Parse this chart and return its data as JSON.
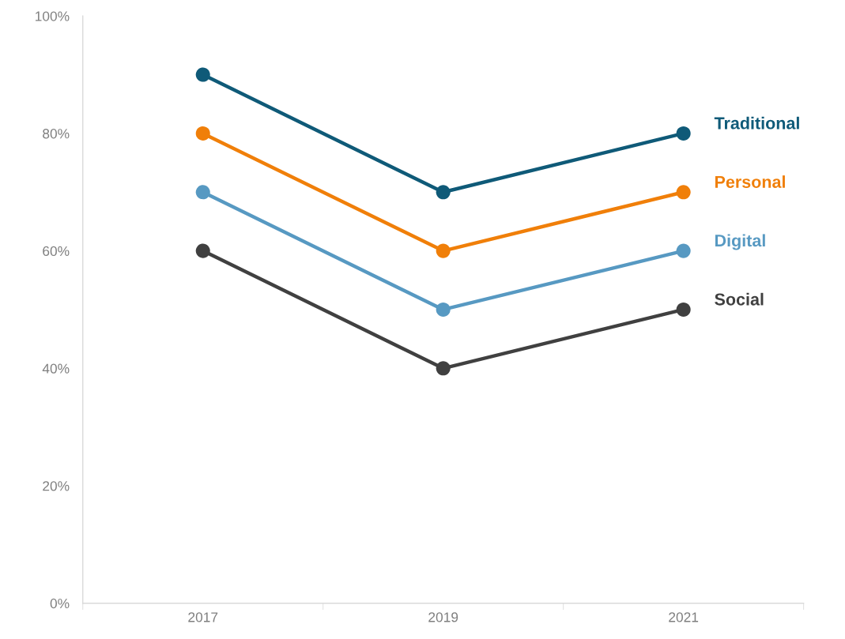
{
  "chart_data": {
    "type": "line",
    "categories": [
      "2017",
      "2019",
      "2021"
    ],
    "series": [
      {
        "name": "Traditional",
        "color": "#0f5a78",
        "values": [
          90,
          70,
          80
        ]
      },
      {
        "name": "Personal",
        "color": "#f07f09",
        "values": [
          80,
          60,
          70
        ]
      },
      {
        "name": "Digital",
        "color": "#5799c2",
        "values": [
          70,
          50,
          60
        ]
      },
      {
        "name": "Social",
        "color": "#404040",
        "values": [
          60,
          40,
          50
        ]
      }
    ],
    "ylim": [
      0,
      100
    ],
    "yticks": [
      {
        "value": 0,
        "label": "0%"
      },
      {
        "value": 20,
        "label": "20%"
      },
      {
        "value": 40,
        "label": "40%"
      },
      {
        "value": 60,
        "label": "60%"
      },
      {
        "value": 80,
        "label": "80%"
      },
      {
        "value": 100,
        "label": "100%"
      }
    ],
    "grid": false,
    "legend": false,
    "marker": "circle",
    "line_style": "solid"
  }
}
